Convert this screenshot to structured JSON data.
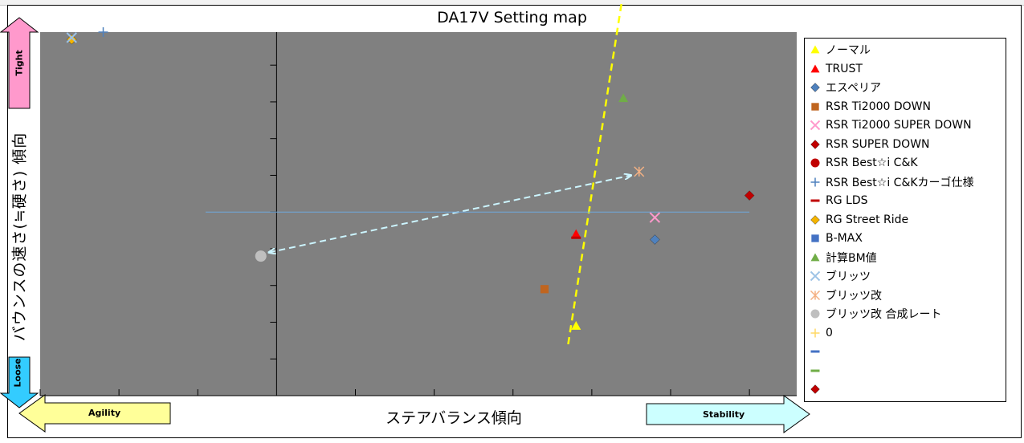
{
  "chart_data": {
    "type": "scatter",
    "title": "DA17V Setting map",
    "xlabel": "ステアバランス傾向",
    "ylabel": "バウンスの速さ(≒硬さ) 傾向",
    "xlim": [
      -3,
      6.6
    ],
    "ylim": [
      -5,
      4.9
    ],
    "grid": false,
    "legend_position": "right",
    "arrows": {
      "left": "Agility",
      "right": "Stability",
      "top": "Tight",
      "bottom": "Loose"
    },
    "series": [
      {
        "name": "ノーマル",
        "marker": "triangle",
        "color": "#ffff00",
        "points": [
          [
            3.8,
            -3.1
          ]
        ]
      },
      {
        "name": "TRUST",
        "marker": "triangle",
        "color": "#ff0000",
        "points": [
          [
            3.8,
            -0.6
          ]
        ]
      },
      {
        "name": "エスペリア",
        "marker": "diamond",
        "color": "#4f81bd",
        "points": [
          [
            4.8,
            -0.75
          ]
        ]
      },
      {
        "name": "RSR Ti2000 DOWN",
        "marker": "square",
        "color": "#c0651f",
        "points": [
          [
            3.4,
            -2.1
          ]
        ]
      },
      {
        "name": "RSR Ti2000 SUPER DOWN",
        "marker": "x",
        "color": "#ff99cc",
        "points": [
          [
            4.8,
            -0.15
          ]
        ]
      },
      {
        "name": "RSR SUPER DOWN",
        "marker": "diamond",
        "color": "#c00000",
        "points": [
          [
            6.0,
            0.45
          ]
        ]
      },
      {
        "name": "RSR Best☆i C&K",
        "marker": "circle",
        "color": "#c00000",
        "points": []
      },
      {
        "name": "RSR Best☆i C&Kカーゴ仕様",
        "marker": "plus",
        "color": "#4f81bd",
        "points": [
          [
            -2.2,
            4.9
          ]
        ]
      },
      {
        "name": "RG LDS",
        "marker": "dash",
        "color": "#c00000",
        "points": [
          [
            3.8,
            -0.7
          ]
        ]
      },
      {
        "name": "RG Street Ride",
        "marker": "diamond",
        "color": "#f4b400",
        "points": [
          [
            -2.6,
            4.7
          ]
        ]
      },
      {
        "name": "B-MAX",
        "marker": "square",
        "color": "#4472c4",
        "points": []
      },
      {
        "name": "計算BM値",
        "marker": "triangle",
        "color": "#70ad47",
        "points": [
          [
            4.4,
            3.1
          ]
        ]
      },
      {
        "name": "ブリッツ",
        "marker": "x",
        "color": "#9dc3e6",
        "points": [
          [
            -2.6,
            4.75
          ]
        ]
      },
      {
        "name": "ブリッツ改",
        "marker": "asterisk",
        "color": "#f4b183",
        "points": [
          [
            4.6,
            1.1
          ]
        ]
      },
      {
        "name": "ブリッツ改 合成レート",
        "marker": "circle",
        "color": "#bfbfbf",
        "points": [
          [
            -0.2,
            -1.2
          ]
        ]
      },
      {
        "name": "0",
        "marker": "plus",
        "color": "#ffd966",
        "points": []
      },
      {
        "name": "",
        "marker": "dash",
        "color": "#4472c4",
        "points": []
      },
      {
        "name": "",
        "marker": "dash",
        "color": "#70ad47",
        "points": []
      },
      {
        "name": "",
        "marker": "diamond",
        "color": "#c00000",
        "points": []
      }
    ],
    "lines": [
      {
        "style": "dashed",
        "color": "#ffff00",
        "from": [
          3.7,
          -3.6
        ],
        "to": [
          4.4,
          6.0
        ]
      },
      {
        "style": "dashed-arrow-both",
        "color": "#ccf5ff",
        "from": [
          -0.1,
          -1.1
        ],
        "to": [
          4.5,
          1.0
        ]
      },
      {
        "style": "solid",
        "color": "#6fa8dc",
        "from": [
          -0.9,
          0.0
        ],
        "to": [
          6.0,
          0.0
        ]
      }
    ]
  }
}
